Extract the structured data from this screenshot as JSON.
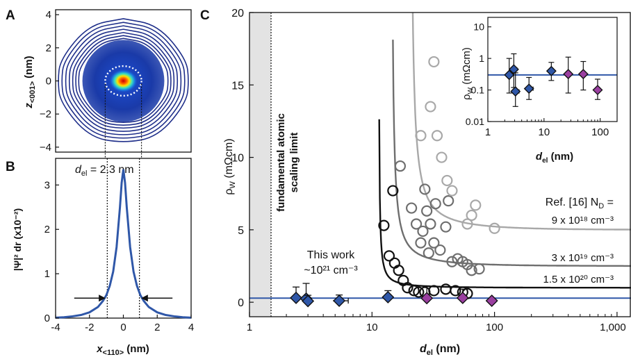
{
  "panels": {
    "a": {
      "letter": "A",
      "ylabel_main": "z",
      "ylabel_sub": "<001>",
      "ylabel_unit": " (nm)"
    },
    "b": {
      "letter": "B",
      "ylabel": "|Ψ|² dr (x10⁻²)",
      "xlabel_main": "x",
      "xlabel_sub": "<110>",
      "xlabel_unit": " (nm)",
      "annotation_symbol": "d",
      "annotation_sub": "el",
      "annotation_value": " = 2.3 nm"
    },
    "c": {
      "letter": "C",
      "ylabel_main": "ρ",
      "ylabel_sub": "W",
      "ylabel_unit": " (mΩcm)",
      "xlabel_main": "d",
      "xlabel_sub": "el",
      "xlabel_unit": "  (nm)",
      "limit_line1": "fundamental atomic",
      "limit_line2": "scaling limit",
      "this_work_line1": "This work",
      "this_work_line2": "~10²¹ cm⁻³",
      "ref_label": "Ref. [16] N",
      "ref_label_sub": "D",
      "ref_label_tail": " =",
      "curve_labels": [
        "9 x 10¹⁸ cm⁻³",
        "3 x 10¹⁹ cm⁻³",
        "1.5 x 10²⁰ cm⁻³"
      ]
    },
    "inset": {
      "ylabel_main": "ρ",
      "ylabel_sub": "W",
      "ylabel_unit": " (mΩcm)",
      "xlabel_main": "d",
      "xlabel_sub": "el",
      "xlabel_unit": "  (nm)"
    }
  },
  "colors": {
    "blue": "#2f57a8",
    "magenta": "#9a3fa0",
    "black": "#111111",
    "gray_dark": "#6e6e6e",
    "gray_light": "#a8a8a8",
    "shade": "#e3e3e3"
  },
  "chart_data": [
    {
      "id": "A",
      "type": "heatmap",
      "description": "wavefunction density contour map",
      "xlim": [
        -4.3,
        4.3
      ],
      "ylim": [
        -4.3,
        4.3
      ],
      "yticks": [
        -4,
        -2,
        0,
        2,
        4
      ],
      "contour_spans": [
        [
          4.0,
          3.95
        ],
        [
          3.78,
          3.72
        ],
        [
          3.55,
          3.5
        ],
        [
          3.33,
          3.28
        ],
        [
          3.12,
          3.07
        ],
        [
          2.93,
          2.88
        ],
        [
          2.75,
          2.7
        ]
      ],
      "dotted_circle_radius": 1.15,
      "cutoff_lines_x": [
        -1.15,
        1.15
      ]
    },
    {
      "id": "B",
      "type": "line",
      "xlim": [
        -4,
        4
      ],
      "ylim": [
        0,
        3.6
      ],
      "xticks": [
        -4,
        -2,
        0,
        2,
        4
      ],
      "yticks": [
        0,
        1,
        2,
        3
      ],
      "x": [
        -4,
        -3.5,
        -3,
        -2.5,
        -2,
        -1.5,
        -1.2,
        -1,
        -0.8,
        -0.6,
        -0.4,
        -0.2,
        -0.1,
        0,
        0.1,
        0.2,
        0.4,
        0.6,
        0.8,
        1,
        1.2,
        1.5,
        2,
        2.5,
        3,
        3.5,
        4
      ],
      "y": [
        0.01,
        0.02,
        0.04,
        0.07,
        0.13,
        0.25,
        0.39,
        0.52,
        0.73,
        1.05,
        1.6,
        2.5,
        3.05,
        3.35,
        3.05,
        2.5,
        1.6,
        1.05,
        0.73,
        0.52,
        0.39,
        0.25,
        0.13,
        0.07,
        0.04,
        0.02,
        0.01
      ],
      "cutoff_lines_x": [
        -0.95,
        0.95
      ],
      "arrow_y": 0.45
    },
    {
      "id": "C",
      "type": "scatter",
      "xscale": "log",
      "xlim": [
        1,
        1300
      ],
      "ylim": [
        -1,
        20
      ],
      "xticks": [
        1,
        10,
        100,
        1000
      ],
      "xtick_labels": [
        "1",
        "10",
        "100",
        "1,000"
      ],
      "yticks": [
        0,
        5,
        10,
        15,
        20
      ],
      "limit_x": 1.5,
      "this_work_fit_y": 0.28,
      "series": [
        {
          "name": "This work",
          "color_key": "blue",
          "marker": "diamond",
          "points": [
            {
              "x": 2.4,
              "y": 0.3,
              "yerr": 0.75
            },
            {
              "x": 2.9,
              "y": 0.25,
              "yerr": 1.05
            },
            {
              "x": 3.0,
              "y": 0.08,
              "yerr": 0.4
            },
            {
              "x": 5.4,
              "y": 0.1,
              "yerr": 0.4,
              "xerr": [
                4.8,
                6.4
              ]
            },
            {
              "x": 13.5,
              "y": 0.35,
              "yerr": 0.45
            }
          ]
        },
        {
          "name": "This work",
          "color_key": "magenta",
          "marker": "diamond",
          "points": [
            {
              "x": 28,
              "y": 0.28,
              "yerr": 0.85
            },
            {
              "x": 55,
              "y": 0.3,
              "yerr": 0.6
            },
            {
              "x": 95,
              "y": 0.1
            }
          ]
        },
        {
          "name": "1.5 x 10²⁰ cm⁻³",
          "color_key": "black",
          "marker": "circle",
          "x": [
            12.5,
            13.8,
            14.8,
            15.3,
            16.5,
            18,
            19.5,
            22,
            24,
            27,
            32,
            40,
            48,
            55,
            60
          ],
          "y": [
            5.3,
            3.2,
            7.7,
            2.7,
            2.2,
            1.5,
            1.0,
            0.8,
            0.7,
            0.7,
            0.8,
            0.9,
            0.8,
            0.7,
            0.6
          ]
        },
        {
          "name": "3 x 10¹⁹ cm⁻³",
          "color_key": "gray_dark",
          "marker": "circle",
          "x": [
            17,
            21,
            23,
            25,
            26,
            27,
            28,
            29,
            30,
            32,
            33,
            36,
            40,
            42,
            45,
            50,
            55,
            60,
            65,
            75
          ],
          "y": [
            9.4,
            6.5,
            5.4,
            4.1,
            4.9,
            7.8,
            6.3,
            3.4,
            5.4,
            4.1,
            6.8,
            3.6,
            5.2,
            7.0,
            2.8,
            3.0,
            2.8,
            2.6,
            2.2,
            2.3
          ]
        },
        {
          "name": "9 x 10¹⁸ cm⁻³",
          "color_key": "gray_light",
          "marker": "circle",
          "x": [
            25,
            30,
            32,
            34,
            37,
            41,
            45,
            60,
            65,
            70,
            100
          ],
          "y": [
            11.5,
            13.5,
            16.6,
            11.5,
            10.0,
            8.4,
            7.7,
            5.4,
            6.0,
            6.7,
            5.1
          ]
        }
      ],
      "fit_curves": [
        {
          "color_key": "black",
          "asymptote": 1.0,
          "a": 1.8,
          "x0": 11.3
        },
        {
          "color_key": "gray_dark",
          "asymptote": 2.5,
          "a": 8.0,
          "x0": 14.3
        },
        {
          "color_key": "gray_light",
          "asymptote": 5.0,
          "a": 18.0,
          "x0": 20.3
        }
      ]
    },
    {
      "id": "C-inset",
      "type": "scatter",
      "xscale": "log",
      "yscale": "log",
      "xlim": [
        1,
        200
      ],
      "ylim": [
        0.01,
        20
      ],
      "xticks": [
        1,
        10,
        100
      ],
      "xtick_labels": [
        "1",
        "10",
        "100"
      ],
      "yticks": [
        0.01,
        0.1,
        1,
        10
      ],
      "ytick_labels": [
        "0.01",
        "0.1",
        "1",
        "10"
      ],
      "fit_y": 0.3,
      "series": [
        {
          "color_key": "blue",
          "marker": "diamond",
          "points": [
            {
              "x": 2.4,
              "y": 0.3,
              "ylo": 0.08,
              "yhi": 1.0
            },
            {
              "x": 2.9,
              "y": 0.45,
              "ylo": 0.12,
              "yhi": 1.4,
              "xerr": [
                2.5,
                3.3
              ]
            },
            {
              "x": 3.1,
              "y": 0.09,
              "ylo": 0.03,
              "yhi": 0.35,
              "xerr": [
                2.7,
                3.6
              ]
            },
            {
              "x": 5.4,
              "y": 0.11,
              "ylo": 0.05,
              "yhi": 0.25,
              "xerr": [
                4.7,
                6.4
              ]
            },
            {
              "x": 13.5,
              "y": 0.4,
              "ylo": 0.2,
              "yhi": 0.75
            }
          ]
        },
        {
          "color_key": "magenta",
          "marker": "diamond",
          "points": [
            {
              "x": 27,
              "y": 0.32,
              "ylo": 0.08,
              "yhi": 1.1
            },
            {
              "x": 50,
              "y": 0.32,
              "ylo": 0.1,
              "yhi": 0.8
            },
            {
              "x": 90,
              "y": 0.1,
              "ylo": 0.05,
              "yhi": 0.22
            }
          ]
        }
      ]
    }
  ]
}
